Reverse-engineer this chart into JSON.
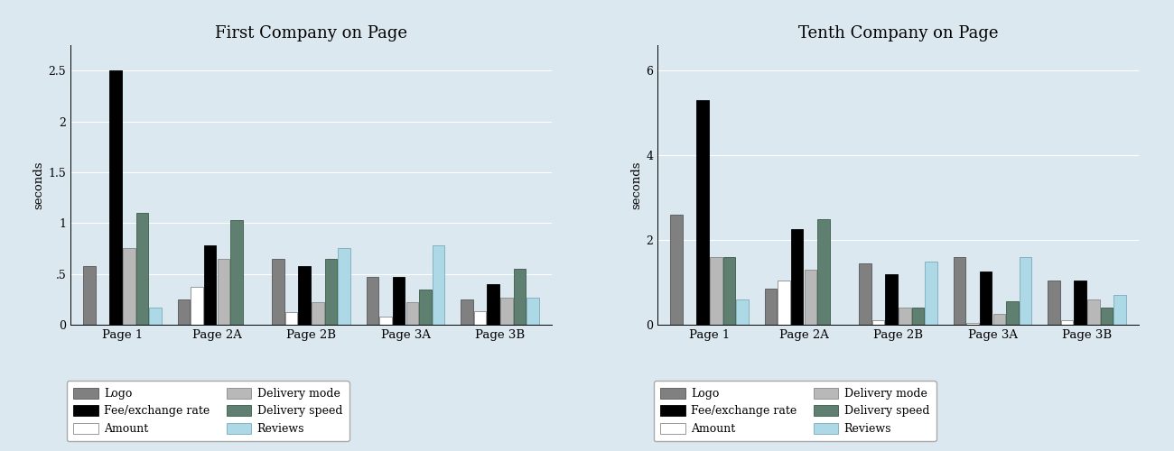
{
  "left_title": "First Company on Page",
  "right_title": "Tenth Company on Page",
  "ylabel": "seconds",
  "categories": [
    "Page 1",
    "Page 2A",
    "Page 2B",
    "Page 3A",
    "Page 3B"
  ],
  "series_names": [
    "Logo",
    "Amount",
    "Fee/exchange rate",
    "Delivery mode",
    "Delivery speed",
    "Reviews"
  ],
  "colors": [
    "#808080",
    "#ffffff",
    "#000000",
    "#b8b8b8",
    "#5f8070",
    "#add8e6"
  ],
  "edge_colors": [
    "#555555",
    "#888888",
    "#000000",
    "#888888",
    "#3a5a48",
    "#7aaabb"
  ],
  "left_data": [
    [
      0.58,
      0.25,
      0.65,
      0.47,
      0.25
    ],
    [
      0.0,
      0.37,
      0.12,
      0.08,
      0.13
    ],
    [
      2.5,
      0.78,
      0.58,
      0.47,
      0.4
    ],
    [
      0.75,
      0.65,
      0.22,
      0.22,
      0.27
    ],
    [
      1.1,
      1.03,
      0.65,
      0.35,
      0.55
    ],
    [
      0.17,
      0.0,
      0.75,
      0.78,
      0.27
    ]
  ],
  "right_data": [
    [
      2.6,
      0.85,
      1.45,
      1.6,
      1.05
    ],
    [
      0.0,
      1.05,
      0.1,
      0.05,
      0.1
    ],
    [
      5.3,
      2.25,
      1.2,
      1.25,
      1.05
    ],
    [
      1.6,
      1.3,
      0.4,
      0.25,
      0.6
    ],
    [
      1.6,
      2.5,
      0.4,
      0.55,
      0.4
    ],
    [
      0.6,
      0.0,
      1.5,
      1.6,
      0.7
    ]
  ],
  "left_ylim": [
    0,
    2.75
  ],
  "left_yticks": [
    0,
    0.5,
    1.0,
    1.5,
    2.0,
    2.5
  ],
  "left_yticklabels": [
    "0",
    ".5",
    "1",
    "1.5",
    "2",
    "2.5"
  ],
  "right_ylim": [
    0,
    6.6
  ],
  "right_yticks": [
    0,
    2,
    4,
    6
  ],
  "right_yticklabels": [
    "0",
    "2",
    "4",
    "6"
  ],
  "background_color": "#dce8f0",
  "plot_bg_color": "#dce8f0",
  "bar_width": 0.13,
  "legend_reorder": [
    0,
    2,
    1,
    3,
    4,
    5
  ]
}
